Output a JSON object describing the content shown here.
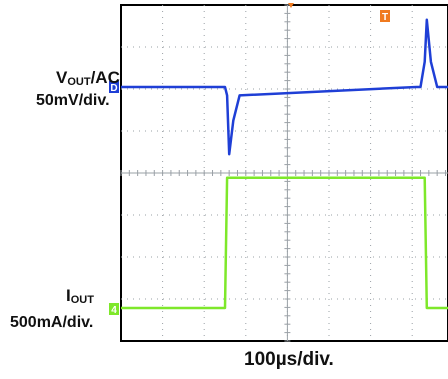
{
  "labels": {
    "v_name_main": "V",
    "v_name_sub": "OUT",
    "v_name_rest": "/AC",
    "v_scale": "50mV/div.",
    "i_name_main": "I",
    "i_name_sub": "OUT",
    "i_scale": "500mA/div.",
    "x_scale": "100µs/div.",
    "ch_v_marker": "D",
    "ch_i_marker": "4",
    "trigger_marker": "T"
  },
  "colors": {
    "voltage": "#1f3fd6",
    "current": "#7ee82a",
    "grid": "#9aa0a6",
    "trigger": "#f07a1f"
  },
  "chart_data": {
    "type": "line",
    "grid": {
      "x_divisions": 10,
      "y_divisions": 8
    },
    "xlabel": "100µs/div.",
    "x": [
      0,
      2.4,
      2.5,
      2.55,
      2.6,
      2.7,
      2.85,
      7.1,
      7.2,
      7.3,
      7.35,
      7.45,
      7.6,
      8.2
    ],
    "series": [
      {
        "name": "VOUT/AC",
        "scale": "50mV/div.",
        "values": [
          0,
          0,
          0,
          -0.2,
          -1.6,
          -0.8,
          -0.2,
          0,
          0,
          0.6,
          1.6,
          0.6,
          0,
          0
        ]
      },
      {
        "name": "IOUT",
        "scale": "500mA/div.",
        "values": [
          0,
          0,
          0,
          3.1,
          3.1,
          3.1,
          3.1,
          3.1,
          3.1,
          3.1,
          0,
          0,
          0,
          0
        ]
      }
    ]
  }
}
